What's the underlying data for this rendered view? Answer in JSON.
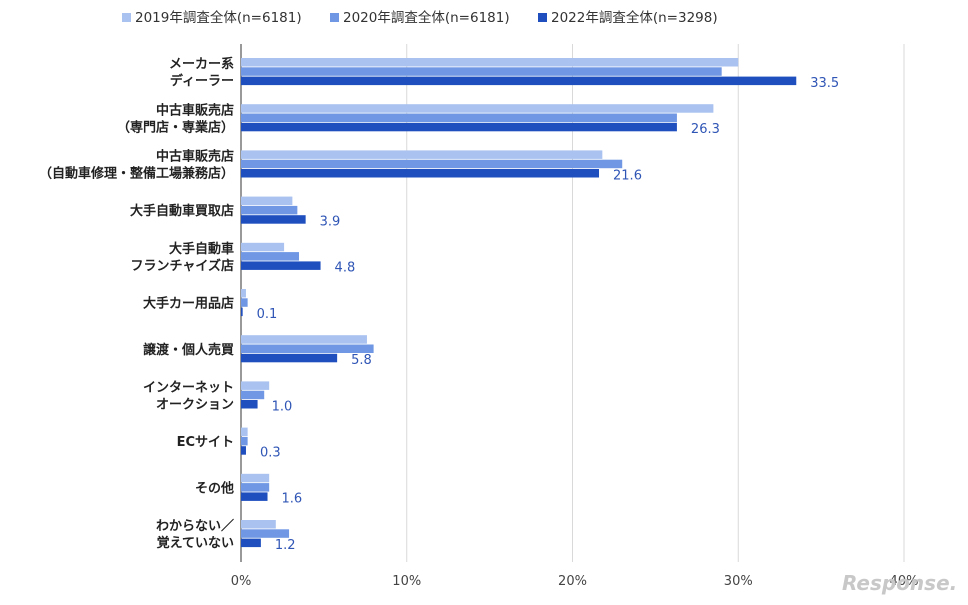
{
  "chart_data": {
    "type": "bar",
    "orientation": "horizontal",
    "categories": [
      [
        "メーカー系",
        "ディーラー"
      ],
      [
        "中古車販売店",
        "（専門店・専業店）"
      ],
      [
        "中古車販売店",
        "（自動車修理・整備工場兼務店）"
      ],
      [
        "大手自動車買取店"
      ],
      [
        "大手自動車",
        "フランチャイズ店"
      ],
      [
        "大手カー用品店"
      ],
      [
        "譲渡・個人売買"
      ],
      [
        "インターネット",
        "オークション"
      ],
      [
        "ECサイト"
      ],
      [
        "その他"
      ],
      [
        "わからない／",
        "覚えていない"
      ]
    ],
    "series": [
      {
        "name": "2019年調査全体(n=6181)",
        "color": "#a9c2f0",
        "values": [
          30.0,
          28.5,
          21.8,
          3.1,
          2.6,
          0.3,
          7.6,
          1.7,
          0.4,
          1.7,
          2.1
        ]
      },
      {
        "name": "2020年調査全体(n=6181)",
        "color": "#6f97e3",
        "values": [
          29.0,
          26.3,
          23.0,
          3.4,
          3.5,
          0.4,
          8.0,
          1.4,
          0.4,
          1.7,
          2.9
        ]
      },
      {
        "name": "2022年調査全体(n=3298)",
        "color": "#1f4fbf",
        "values": [
          33.5,
          26.3,
          21.6,
          3.9,
          4.8,
          0.1,
          5.8,
          1.0,
          0.3,
          1.6,
          1.2
        ]
      }
    ],
    "data_labels": [
      "33.5",
      "26.3",
      "21.6",
      "3.9",
      "4.8",
      "0.1",
      "5.8",
      "1.0",
      "0.3",
      "1.6",
      "1.2"
    ],
    "xlim": [
      0,
      40
    ],
    "xticks": [
      "0%",
      "10%",
      "20%",
      "30%",
      "40%"
    ],
    "grid": true,
    "legend_position": "top"
  },
  "watermark": "Response."
}
